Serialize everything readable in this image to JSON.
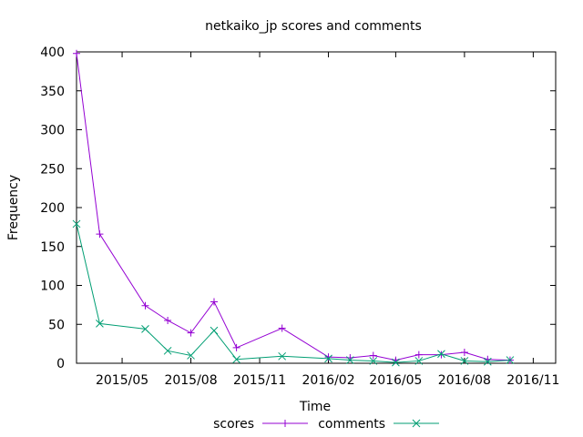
{
  "chart_data": {
    "type": "line",
    "title": "netkaiko_jp scores and comments",
    "xlabel": "Time",
    "ylabel": "Frequency",
    "ylim": [
      0,
      400
    ],
    "xlim": [
      "2015-03-01",
      "2016-12-01"
    ],
    "yticks": [
      0,
      50,
      100,
      150,
      200,
      250,
      300,
      350,
      400
    ],
    "xticks": [
      {
        "date": "2015-05-01",
        "label": "2015/05"
      },
      {
        "date": "2015-08-01",
        "label": "2015/08"
      },
      {
        "date": "2015-11-01",
        "label": "2015/11"
      },
      {
        "date": "2016-02-01",
        "label": "2016/02"
      },
      {
        "date": "2016-05-01",
        "label": "2016/05"
      },
      {
        "date": "2016-08-01",
        "label": "2016/08"
      },
      {
        "date": "2016-11-01",
        "label": "2016/11"
      }
    ],
    "grid": false,
    "legend_position": "bottom",
    "series": [
      {
        "name": "scores",
        "color": "#9400d3",
        "marker": "plus",
        "x": [
          "2015-03-01",
          "2015-04-01",
          "2015-06-01",
          "2015-07-01",
          "2015-08-01",
          "2015-09-01",
          "2015-10-01",
          "2015-12-01",
          "2016-02-01",
          "2016-03-01",
          "2016-04-01",
          "2016-05-01",
          "2016-06-01",
          "2016-07-01",
          "2016-08-01",
          "2016-09-01",
          "2016-10-01"
        ],
        "values": [
          398,
          166,
          74,
          55,
          39,
          79,
          20,
          45,
          8,
          7,
          10,
          4,
          11,
          11,
          14,
          5,
          4
        ]
      },
      {
        "name": "comments",
        "color": "#009e73",
        "marker": "cross",
        "x": [
          "2015-03-01",
          "2015-04-01",
          "2015-06-01",
          "2015-07-01",
          "2015-08-01",
          "2015-09-01",
          "2015-10-01",
          "2015-12-01",
          "2016-02-01",
          "2016-03-01",
          "2016-04-01",
          "2016-05-01",
          "2016-06-01",
          "2016-07-01",
          "2016-08-01",
          "2016-09-01",
          "2016-10-01"
        ],
        "values": [
          179,
          51,
          44,
          16,
          10,
          42,
          5,
          9,
          6,
          4,
          3,
          1,
          3,
          12,
          3,
          2,
          4
        ]
      }
    ]
  }
}
